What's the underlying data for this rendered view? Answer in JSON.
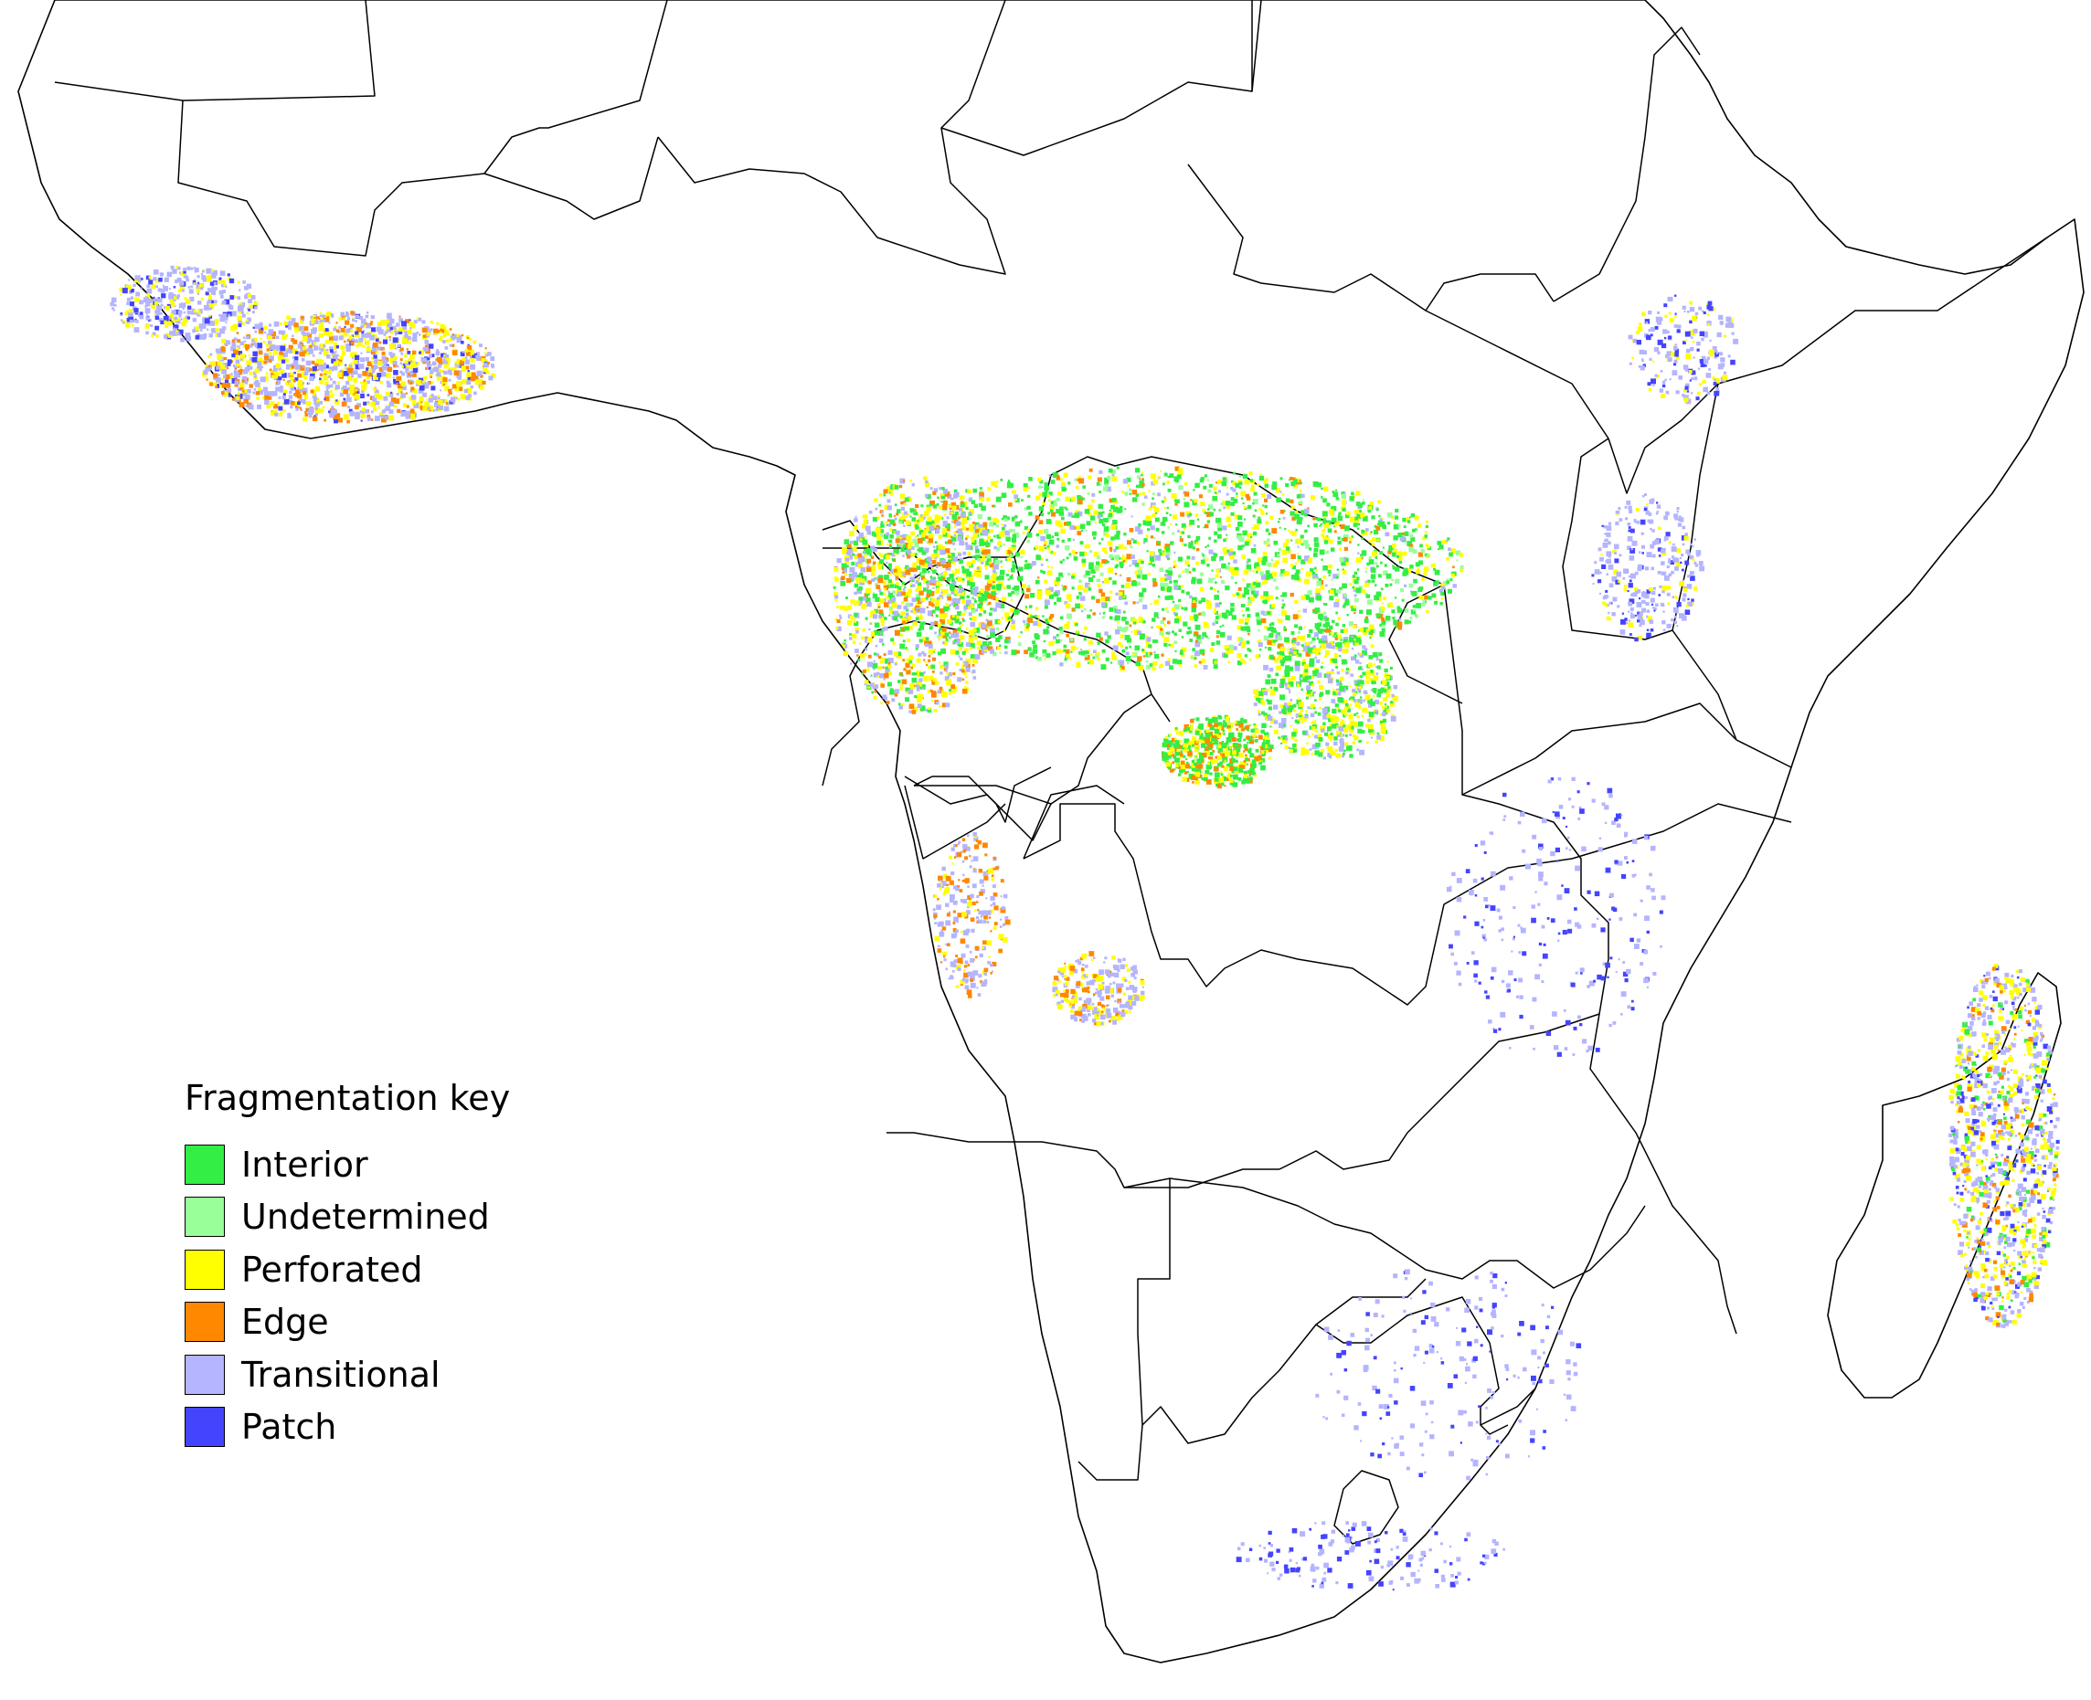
{
  "legend": {
    "title": "Fragmentation key",
    "items": [
      {
        "label": "Interior",
        "color": "#33ee44"
      },
      {
        "label": "Undetermined",
        "color": "#99ff99"
      },
      {
        "label": "Perforated",
        "color": "#ffff00"
      },
      {
        "label": "Edge",
        "color": "#ff8800"
      },
      {
        "label": "Transitional",
        "color": "#b4b4ff"
      },
      {
        "label": "Patch",
        "color": "#4444ff"
      }
    ]
  }
}
